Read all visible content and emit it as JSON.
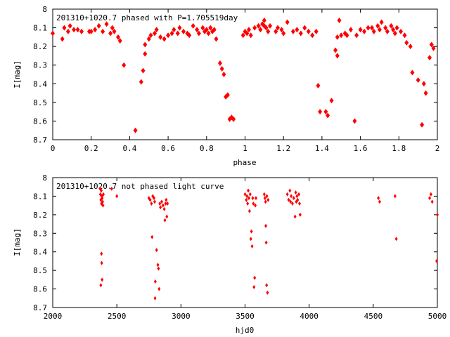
{
  "chart_data": [
    {
      "type": "scatter",
      "title": "201310+1020.7 phased with P=1.705519day",
      "xlabel": "phase",
      "ylabel": "I[mag]",
      "xlim": [
        0,
        2
      ],
      "ylim": [
        8.7,
        8.0
      ],
      "y_inverted": true,
      "xticks": [
        "0",
        "0.2",
        "0.4",
        "0.6",
        "0.8",
        "1",
        "1.2",
        "1.4",
        "1.6",
        "1.8",
        "2"
      ],
      "yticks": [
        "8",
        "8.1",
        "8.2",
        "8.3",
        "8.4",
        "8.5",
        "8.6",
        "8.7"
      ],
      "grid": false,
      "marker_color": "#ff0000",
      "points": [
        [
          0.0,
          8.13
        ],
        [
          0.05,
          8.16
        ],
        [
          0.06,
          8.1
        ],
        [
          0.08,
          8.12
        ],
        [
          0.09,
          8.09
        ],
        [
          0.11,
          8.11
        ],
        [
          0.13,
          8.11
        ],
        [
          0.15,
          8.12
        ],
        [
          0.19,
          8.12
        ],
        [
          0.2,
          8.12
        ],
        [
          0.22,
          8.11
        ],
        [
          0.24,
          8.09
        ],
        [
          0.26,
          8.12
        ],
        [
          0.28,
          8.08
        ],
        [
          0.3,
          8.13
        ],
        [
          0.31,
          8.1
        ],
        [
          0.32,
          8.12
        ],
        [
          0.34,
          8.15
        ],
        [
          0.35,
          8.17
        ],
        [
          0.37,
          8.3
        ],
        [
          0.43,
          8.65
        ],
        [
          0.46,
          8.39
        ],
        [
          0.47,
          8.33
        ],
        [
          0.48,
          8.24
        ],
        [
          0.48,
          8.19
        ],
        [
          0.5,
          8.16
        ],
        [
          0.51,
          8.14
        ],
        [
          0.53,
          8.13
        ],
        [
          0.54,
          8.11
        ],
        [
          0.56,
          8.15
        ],
        [
          0.58,
          8.16
        ],
        [
          0.6,
          8.14
        ],
        [
          0.62,
          8.13
        ],
        [
          0.63,
          8.11
        ],
        [
          0.65,
          8.13
        ],
        [
          0.66,
          8.1
        ],
        [
          0.68,
          8.12
        ],
        [
          0.7,
          8.13
        ],
        [
          0.71,
          8.14
        ],
        [
          0.73,
          8.09
        ],
        [
          0.75,
          8.11
        ],
        [
          0.76,
          8.13
        ],
        [
          0.78,
          8.1
        ],
        [
          0.79,
          8.12
        ],
        [
          0.8,
          8.11
        ],
        [
          0.81,
          8.13
        ],
        [
          0.82,
          8.1
        ],
        [
          0.83,
          8.12
        ],
        [
          0.84,
          8.11
        ],
        [
          0.85,
          8.16
        ],
        [
          0.87,
          8.29
        ],
        [
          0.88,
          8.32
        ],
        [
          0.89,
          8.35
        ],
        [
          0.9,
          8.47
        ],
        [
          0.91,
          8.46
        ],
        [
          0.92,
          8.59
        ],
        [
          0.93,
          8.58
        ],
        [
          0.94,
          8.59
        ],
        [
          0.99,
          8.14
        ],
        [
          1.0,
          8.12
        ],
        [
          1.01,
          8.13
        ],
        [
          1.02,
          8.11
        ],
        [
          1.03,
          8.14
        ],
        [
          1.05,
          8.1
        ],
        [
          1.07,
          8.09
        ],
        [
          1.08,
          8.11
        ],
        [
          1.09,
          8.08
        ],
        [
          1.1,
          8.09
        ],
        [
          1.1,
          8.06
        ],
        [
          1.11,
          8.1
        ],
        [
          1.12,
          8.12
        ],
        [
          1.13,
          8.09
        ],
        [
          1.16,
          8.12
        ],
        [
          1.17,
          8.1
        ],
        [
          1.19,
          8.11
        ],
        [
          1.2,
          8.13
        ],
        [
          1.22,
          8.07
        ],
        [
          1.25,
          8.12
        ],
        [
          1.27,
          8.11
        ],
        [
          1.29,
          8.13
        ],
        [
          1.31,
          8.1
        ],
        [
          1.33,
          8.12
        ],
        [
          1.35,
          8.14
        ],
        [
          1.37,
          8.12
        ],
        [
          1.38,
          8.41
        ],
        [
          1.39,
          8.55
        ],
        [
          1.42,
          8.55
        ],
        [
          1.43,
          8.57
        ],
        [
          1.45,
          8.49
        ],
        [
          1.47,
          8.22
        ],
        [
          1.48,
          8.25
        ],
        [
          1.48,
          8.15
        ],
        [
          1.49,
          8.06
        ],
        [
          1.5,
          8.14
        ],
        [
          1.52,
          8.13
        ],
        [
          1.53,
          8.14
        ],
        [
          1.55,
          8.11
        ],
        [
          1.57,
          8.6
        ],
        [
          1.58,
          8.14
        ],
        [
          1.6,
          8.11
        ],
        [
          1.62,
          8.12
        ],
        [
          1.64,
          8.1
        ],
        [
          1.66,
          8.1
        ],
        [
          1.67,
          8.12
        ],
        [
          1.69,
          8.09
        ],
        [
          1.7,
          8.11
        ],
        [
          1.71,
          8.07
        ],
        [
          1.73,
          8.1
        ],
        [
          1.74,
          8.12
        ],
        [
          1.76,
          8.09
        ],
        [
          1.77,
          8.11
        ],
        [
          1.78,
          8.13
        ],
        [
          1.79,
          8.1
        ],
        [
          1.81,
          8.12
        ],
        [
          1.83,
          8.14
        ],
        [
          1.84,
          8.18
        ],
        [
          1.86,
          8.2
        ],
        [
          1.87,
          8.34
        ],
        [
          1.9,
          8.38
        ],
        [
          1.92,
          8.62
        ],
        [
          1.93,
          8.4
        ],
        [
          1.94,
          8.45
        ],
        [
          1.96,
          8.26
        ],
        [
          1.97,
          8.19
        ],
        [
          1.98,
          8.21
        ]
      ]
    },
    {
      "type": "scatter",
      "title": "201310+1020.7 not phased light curve",
      "xlabel": "hjd0",
      "ylabel": "I[mag]",
      "xlim": [
        2000,
        5000
      ],
      "ylim": [
        8.7,
        8.0
      ],
      "y_inverted": true,
      "xticks": [
        "2000",
        "2500",
        "3000",
        "3500",
        "4000",
        "4500",
        "5000"
      ],
      "yticks": [
        "8",
        "8.1",
        "8.2",
        "8.3",
        "8.4",
        "8.5",
        "8.6",
        "8.7"
      ],
      "grid": false,
      "marker_color": "#ff0000",
      "points": [
        [
          2370,
          8.06
        ],
        [
          2372,
          8.09
        ],
        [
          2375,
          8.12
        ],
        [
          2378,
          8.07
        ],
        [
          2380,
          8.14
        ],
        [
          2383,
          8.1
        ],
        [
          2386,
          8.11
        ],
        [
          2389,
          8.13
        ],
        [
          2392,
          8.15
        ],
        [
          2395,
          8.09
        ],
        [
          2380,
          8.41
        ],
        [
          2382,
          8.46
        ],
        [
          2385,
          8.55
        ],
        [
          2375,
          8.58
        ],
        [
          2460,
          8.06
        ],
        [
          2500,
          8.1
        ],
        [
          2750,
          8.11
        ],
        [
          2760,
          8.12
        ],
        [
          2770,
          8.14
        ],
        [
          2775,
          8.32
        ],
        [
          2780,
          8.1
        ],
        [
          2790,
          8.11
        ],
        [
          2795,
          8.13
        ],
        [
          2798,
          8.65
        ],
        [
          2800,
          8.56
        ],
        [
          2810,
          8.39
        ],
        [
          2820,
          8.47
        ],
        [
          2825,
          8.49
        ],
        [
          2830,
          8.6
        ],
        [
          2835,
          8.14
        ],
        [
          2840,
          8.16
        ],
        [
          2850,
          8.13
        ],
        [
          2860,
          8.15
        ],
        [
          2870,
          8.17
        ],
        [
          2875,
          8.23
        ],
        [
          2880,
          8.14
        ],
        [
          2885,
          8.12
        ],
        [
          2890,
          8.21
        ],
        [
          2895,
          8.14
        ],
        [
          3500,
          8.09
        ],
        [
          3510,
          8.12
        ],
        [
          3515,
          8.1
        ],
        [
          3520,
          8.14
        ],
        [
          3525,
          8.07
        ],
        [
          3530,
          8.11
        ],
        [
          3535,
          8.18
        ],
        [
          3540,
          8.09
        ],
        [
          3545,
          8.33
        ],
        [
          3550,
          8.29
        ],
        [
          3555,
          8.37
        ],
        [
          3560,
          8.11
        ],
        [
          3565,
          8.14
        ],
        [
          3570,
          8.59
        ],
        [
          3575,
          8.54
        ],
        [
          3580,
          8.15
        ],
        [
          3585,
          8.11
        ],
        [
          3650,
          8.09
        ],
        [
          3655,
          8.11
        ],
        [
          3660,
          8.13
        ],
        [
          3662,
          8.26
        ],
        [
          3665,
          8.35
        ],
        [
          3668,
          8.58
        ],
        [
          3675,
          8.62
        ],
        [
          3670,
          8.1
        ],
        [
          3680,
          8.12
        ],
        [
          3830,
          8.09
        ],
        [
          3840,
          8.12
        ],
        [
          3850,
          8.07
        ],
        [
          3855,
          8.13
        ],
        [
          3860,
          8.1
        ],
        [
          3870,
          8.14
        ],
        [
          3880,
          8.11
        ],
        [
          3890,
          8.21
        ],
        [
          3895,
          8.08
        ],
        [
          3900,
          8.13
        ],
        [
          3905,
          8.1
        ],
        [
          3910,
          8.12
        ],
        [
          3920,
          8.09
        ],
        [
          3925,
          8.14
        ],
        [
          3930,
          8.2
        ],
        [
          4540,
          8.11
        ],
        [
          4550,
          8.13
        ],
        [
          4670,
          8.1
        ],
        [
          4680,
          8.33
        ],
        [
          4940,
          8.11
        ],
        [
          4950,
          8.09
        ],
        [
          4960,
          8.13
        ],
        [
          4995,
          8.45
        ],
        [
          5000,
          8.2
        ]
      ]
    }
  ]
}
